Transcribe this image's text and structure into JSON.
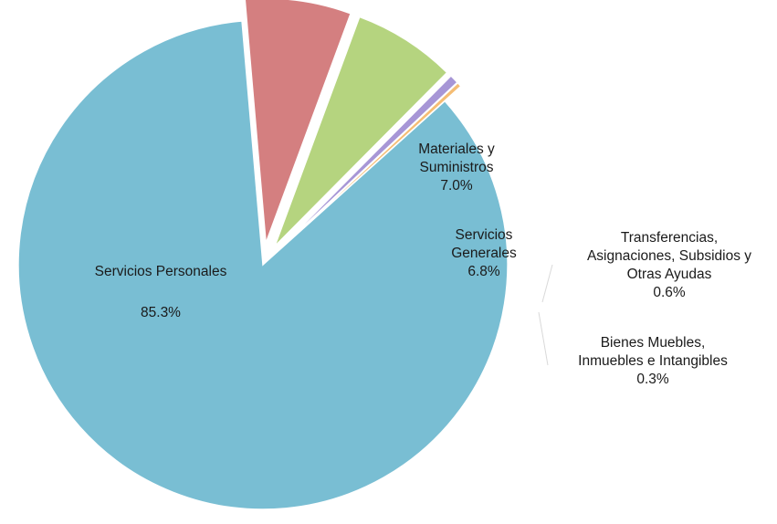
{
  "chart_data": {
    "type": "pie",
    "title": "",
    "legend": "none",
    "slices": [
      {
        "name_lines": [
          "Servicios Personales"
        ],
        "value": 85.3,
        "label": "85.3%",
        "color": "#79bed3",
        "exploded": false
      },
      {
        "name_lines": [
          "Materiales y",
          "Suministros"
        ],
        "value": 7.0,
        "label": "7.0%",
        "color": "#d47f80",
        "exploded": true
      },
      {
        "name_lines": [
          "Servicios",
          "Generales"
        ],
        "value": 6.8,
        "label": "6.8%",
        "color": "#b5d47f",
        "exploded": true
      },
      {
        "name_lines": [
          "Transferencias,",
          "Asignaciones, Subsidios y",
          "Otras Ayudas"
        ],
        "value": 0.6,
        "label": "0.6%",
        "color": "#a796d6",
        "exploded": true
      },
      {
        "name_lines": [
          "Bienes Muebles,",
          "Inmuebles e Intangibles"
        ],
        "value": 0.3,
        "label": "0.3%",
        "color": "#f5bd74",
        "exploded": true
      }
    ]
  }
}
